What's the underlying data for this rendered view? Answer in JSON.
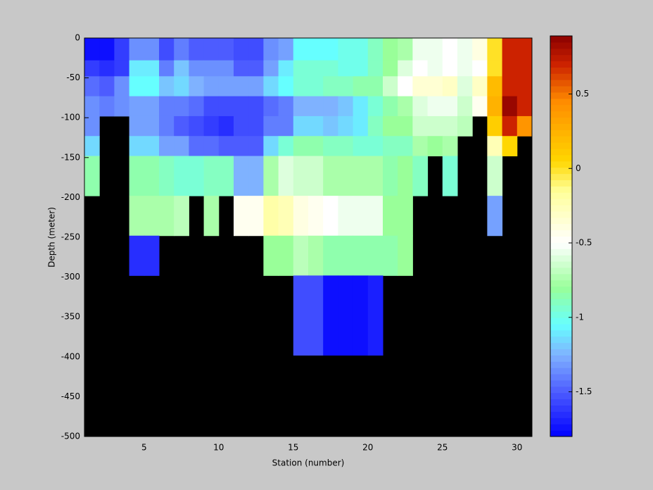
{
  "chart_data": {
    "type": "heatmap",
    "xlabel": "Station (number)",
    "ylabel": "Depth (meter)",
    "x": [
      1,
      2,
      3,
      4,
      5,
      6,
      7,
      8,
      9,
      10,
      11,
      12,
      13,
      14,
      15,
      16,
      17,
      18,
      19,
      20,
      21,
      22,
      23,
      24,
      25,
      26,
      27,
      28,
      29,
      30,
      31
    ],
    "y": [
      0,
      -28,
      -48,
      -73,
      -98,
      -123,
      -148,
      -198,
      -248,
      -298,
      -398
    ],
    "z": [
      [
        -1.75,
        -1.75,
        -1.6,
        -1.35,
        -1.35,
        -1.55,
        -1.4,
        -1.5,
        -1.5,
        -1.5,
        -1.55,
        -1.55,
        -1.35,
        -1.3,
        -1.05,
        -1.05,
        -1.05,
        -1.0,
        -1.0,
        -0.9,
        -0.8,
        -0.75,
        -0.55,
        -0.55,
        -0.5,
        -0.55,
        -0.4,
        0.0,
        0.7,
        0.7
      ],
      [
        -1.6,
        -1.65,
        -1.6,
        -1.1,
        -1.1,
        -1.4,
        -1.2,
        -1.35,
        -1.35,
        -1.35,
        -1.5,
        -1.5,
        -1.3,
        -1.1,
        -0.95,
        -0.95,
        -0.95,
        -1.0,
        -1.0,
        -0.9,
        -0.8,
        -0.6,
        -0.5,
        -0.55,
        -0.5,
        -0.55,
        -0.5,
        0.0,
        0.7,
        0.7
      ],
      [
        -1.45,
        -1.5,
        -1.35,
        -1.05,
        -1.05,
        -1.2,
        -1.15,
        -1.25,
        -1.3,
        -1.3,
        -1.3,
        -1.3,
        -1.15,
        -1.05,
        -0.95,
        -0.95,
        -0.9,
        -0.9,
        -0.85,
        -0.85,
        -0.65,
        -0.5,
        -0.35,
        -0.35,
        -0.3,
        -0.6,
        -0.3,
        0.2,
        0.7,
        0.7
      ],
      [
        -1.35,
        -1.4,
        -1.35,
        -1.3,
        -1.3,
        -1.4,
        -1.4,
        -1.45,
        -1.55,
        -1.55,
        -1.55,
        -1.55,
        -1.45,
        -1.4,
        -1.25,
        -1.25,
        -1.25,
        -1.2,
        -1.1,
        -0.95,
        -0.85,
        -0.75,
        -0.6,
        -0.55,
        -0.55,
        -0.65,
        -0.45,
        0.25,
        0.85,
        0.7
      ],
      [
        -1.35,
        null,
        null,
        -1.3,
        -1.3,
        -1.4,
        -1.5,
        -1.55,
        -1.6,
        -1.65,
        -1.55,
        -1.55,
        -1.4,
        -1.4,
        -1.15,
        -1.15,
        -1.2,
        -1.15,
        -1.1,
        -0.9,
        -0.8,
        -0.8,
        -0.65,
        -0.65,
        -0.65,
        -0.7,
        null,
        0.1,
        0.7,
        0.4
      ],
      [
        -1.15,
        null,
        null,
        -1.15,
        -1.15,
        -1.3,
        -1.3,
        -1.45,
        -1.45,
        -1.5,
        -1.5,
        -1.5,
        -1.15,
        -0.95,
        -0.85,
        -0.85,
        -0.9,
        -0.9,
        -0.95,
        -0.95,
        -0.9,
        -0.9,
        -0.75,
        -0.8,
        -0.75,
        null,
        null,
        -0.25,
        0.05,
        null
      ],
      [
        -0.85,
        null,
        null,
        -0.85,
        -0.85,
        -0.9,
        -0.95,
        -0.95,
        -0.9,
        -0.9,
        -1.25,
        -1.25,
        -0.75,
        -0.6,
        -0.65,
        -0.65,
        -0.75,
        -0.75,
        -0.75,
        -0.75,
        -0.85,
        -0.8,
        -0.9,
        null,
        -0.95,
        null,
        null,
        -0.65,
        null,
        null
      ],
      [
        null,
        null,
        null,
        -0.75,
        -0.75,
        -0.75,
        -0.7,
        null,
        -0.75,
        null,
        -0.45,
        -0.45,
        -0.2,
        -0.25,
        -0.4,
        -0.45,
        -0.5,
        -0.55,
        -0.55,
        -0.55,
        -0.8,
        -0.8,
        null,
        null,
        null,
        null,
        null,
        -1.3,
        null,
        null
      ],
      [
        null,
        null,
        null,
        -1.65,
        -1.65,
        null,
        null,
        null,
        null,
        null,
        null,
        null,
        -0.8,
        -0.8,
        -0.7,
        -0.75,
        -0.85,
        -0.85,
        -0.85,
        -0.85,
        -0.85,
        -0.8,
        null,
        null,
        null,
        null,
        null,
        null,
        null,
        null
      ],
      [
        null,
        null,
        null,
        null,
        null,
        null,
        null,
        null,
        null,
        null,
        null,
        null,
        null,
        null,
        -1.55,
        -1.55,
        -1.75,
        -1.75,
        -1.75,
        -1.7,
        null,
        null,
        null,
        null,
        null,
        null,
        null,
        null,
        null,
        null
      ]
    ],
    "xlim": [
      1,
      31
    ],
    "ylim": [
      -500,
      0
    ],
    "xticks": [
      5,
      10,
      15,
      20,
      25,
      30
    ],
    "yticks": [
      0,
      -50,
      -100,
      -150,
      -200,
      -250,
      -300,
      -350,
      -400,
      -450,
      -500
    ],
    "clim": [
      -1.8,
      0.89
    ],
    "cticks": [
      0.5,
      0,
      -0.5,
      -1,
      -1.5
    ],
    "missing_color": "#000000",
    "colormap": [
      {
        "value": -1.8,
        "color": "#0000ff"
      },
      {
        "value": -1.5,
        "color": "#4d5cff"
      },
      {
        "value": -1.25,
        "color": "#7fb2ff"
      },
      {
        "value": -1.05,
        "color": "#66ffff"
      },
      {
        "value": -0.8,
        "color": "#99ff99"
      },
      {
        "value": -0.5,
        "color": "#ffffff"
      },
      {
        "value": -0.15,
        "color": "#ffff99"
      },
      {
        "value": 0.05,
        "color": "#ffd700"
      },
      {
        "value": 0.45,
        "color": "#ff8c00"
      },
      {
        "value": 0.7,
        "color": "#cc2200"
      },
      {
        "value": 0.89,
        "color": "#8b0000"
      }
    ]
  }
}
